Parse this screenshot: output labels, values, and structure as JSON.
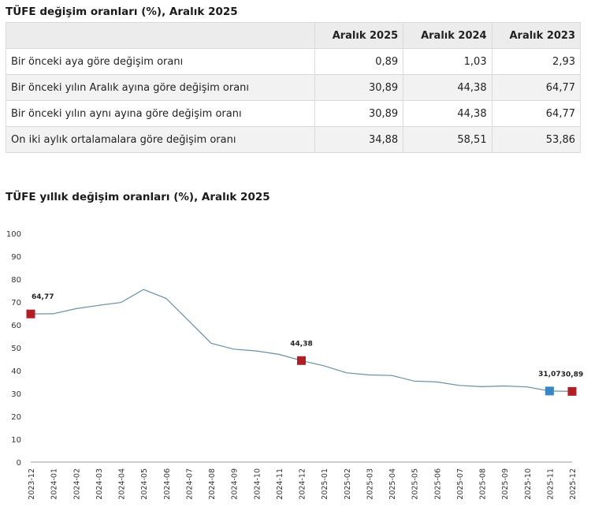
{
  "table": {
    "title": "TÜFE değişim oranları (%), Aralık 2025",
    "columns": [
      "",
      "Aralık 2025",
      "Aralık 2024",
      "Aralık 2023"
    ],
    "rows": [
      {
        "label": "Bir önceki aya göre değişim oranı",
        "values": [
          "0,89",
          "1,03",
          "2,93"
        ]
      },
      {
        "label": "Bir önceki yılın Aralık ayına göre değişim oranı",
        "values": [
          "30,89",
          "44,38",
          "64,77"
        ]
      },
      {
        "label": "Bir önceki yılın aynı ayına göre değişim oranı",
        "values": [
          "30,89",
          "44,38",
          "64,77"
        ]
      },
      {
        "label": "On iki aylık ortalamalara göre değişim oranı",
        "values": [
          "34,88",
          "58,51",
          "53,86"
        ]
      }
    ]
  },
  "chart_data": {
    "type": "line",
    "title": "TÜFE yıllık değişim oranları (%), Aralık 2025",
    "xlabel": "",
    "ylabel": "",
    "ylim": [
      0,
      100
    ],
    "yticks": [
      0,
      10,
      20,
      30,
      40,
      50,
      60,
      70,
      80,
      90,
      100
    ],
    "categories": [
      "2023-12",
      "2024-01",
      "2024-02",
      "2024-03",
      "2024-04",
      "2024-05",
      "2024-06",
      "2024-07",
      "2024-08",
      "2024-09",
      "2024-10",
      "2024-11",
      "2024-12",
      "2025-01",
      "2025-02",
      "2025-03",
      "2025-04",
      "2025-05",
      "2025-06",
      "2025-07",
      "2025-08",
      "2025-09",
      "2025-10",
      "2025-11",
      "2025-12"
    ],
    "values": [
      64.77,
      64.86,
      67.07,
      68.5,
      69.8,
      75.45,
      71.6,
      61.78,
      51.97,
      49.38,
      48.58,
      47.09,
      44.38,
      42.12,
      39.05,
      38.1,
      37.86,
      35.41,
      35.05,
      33.52,
      32.95,
      33.29,
      32.87,
      31.07,
      30.89
    ],
    "line_color": "#6a8fa3",
    "markers": [
      {
        "index": 0,
        "label": "64,77",
        "color": "#b11f25"
      },
      {
        "index": 12,
        "label": "44,38",
        "color": "#b11f25"
      },
      {
        "index": 23,
        "label": "31,07",
        "color": "#3a86c4"
      },
      {
        "index": 24,
        "label": "30,89",
        "color": "#b11f25"
      }
    ]
  }
}
